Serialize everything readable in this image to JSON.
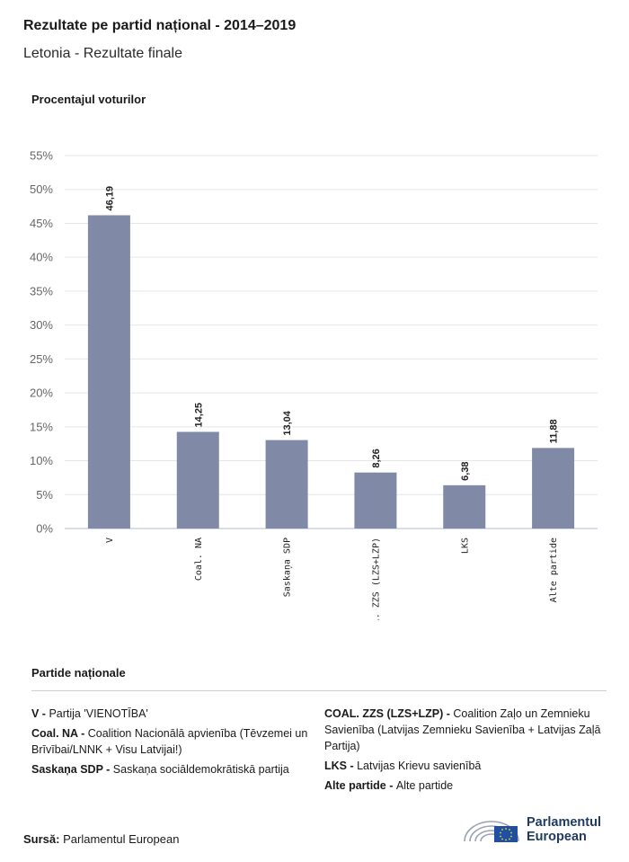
{
  "header": {
    "title": "Rezultate pe partid național - 2014–2019",
    "subtitle": "Letonia - Rezultate finale"
  },
  "colors": {
    "bar": "#8089a6",
    "grid": "#e6e6e6",
    "axis": "#c9d3e3",
    "logo_blue": "#1f3a5f",
    "eu_flag": "#1f4fa3"
  },
  "chart_data": {
    "type": "bar",
    "ylabel": "Procentajul voturilor",
    "categories": [
      "V",
      "Coal. NA",
      "Saskaņa SDP",
      "COAL. ZZS (LZS+LZP)",
      "LKS",
      "Alte partide"
    ],
    "values": [
      46.19,
      14.25,
      13.04,
      8.26,
      6.38,
      11.88
    ],
    "value_labels": [
      "46,19",
      "14,25",
      "13,04",
      "8,26",
      "6,38",
      "11,88"
    ],
    "ylim": [
      0,
      55
    ],
    "yticks": [
      0,
      5,
      10,
      15,
      20,
      25,
      30,
      35,
      40,
      45,
      50,
      55
    ],
    "ytick_labels": [
      "0%",
      "5%",
      "10%",
      "15%",
      "20%",
      "25%",
      "30%",
      "35%",
      "40%",
      "45%",
      "50%",
      "55%"
    ],
    "grid": true
  },
  "legend": {
    "title": "Partide naționale",
    "left": [
      {
        "abbr": "V -",
        "desc": "Partija 'VIENOTĪBA'"
      },
      {
        "abbr": "Coal. NA -",
        "desc": "Coalition Nacionālā apvienība (Tēvzemei un Brīvībai/LNNK + Visu Latvijai!)"
      },
      {
        "abbr": "Saskaņa SDP -",
        "desc": "Saskaņa sociāldemokrātiskā partija"
      }
    ],
    "right": [
      {
        "abbr": "COAL. ZZS (LZS+LZP) -",
        "desc": "Coalition Zaļo un Zemnieku Savienība (Latvijas Zemnieku Savienība + Latvijas Zaļā Partija)"
      },
      {
        "abbr": "LKS -",
        "desc": "Latvijas Krievu savienībā"
      },
      {
        "abbr": "Alte partide -",
        "desc": "Alte partide"
      }
    ]
  },
  "footer": {
    "source_label": "Sursă:",
    "source_value": "Parlamentul European",
    "logo_line1": "Parlamentul",
    "logo_line2": "European"
  }
}
